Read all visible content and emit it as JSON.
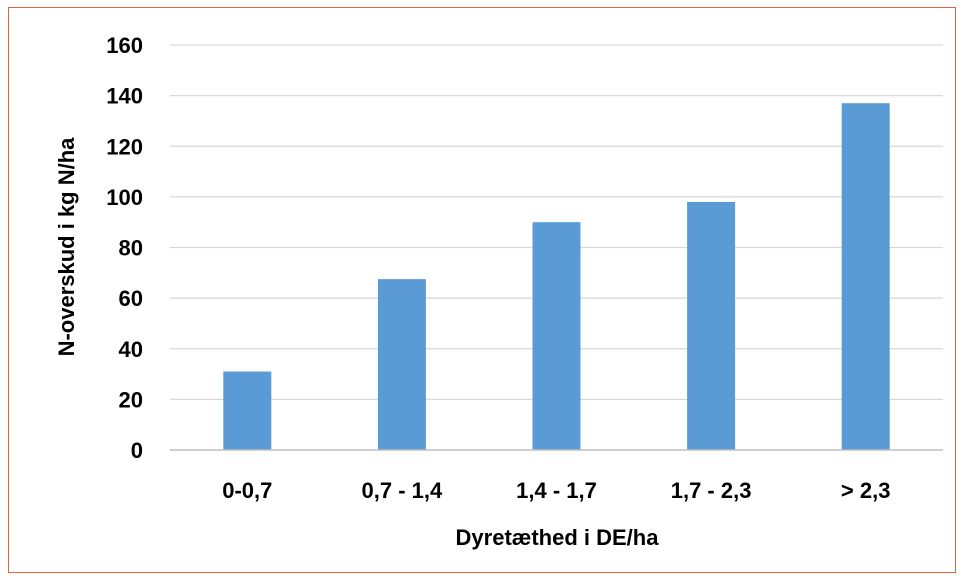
{
  "chart_data": {
    "type": "bar",
    "title": "",
    "xlabel": "Dyretæthed i DE/ha",
    "ylabel": "N-overskud i kg N/ha",
    "categories": [
      "0-0,7",
      "0,7 - 1,4",
      "1,4 - 1,7",
      "1,7 - 2,3",
      "> 2,3"
    ],
    "values": [
      31,
      67.5,
      90,
      98,
      137
    ],
    "ylim": [
      0,
      160
    ],
    "yticks": [
      0,
      20,
      40,
      60,
      80,
      100,
      120,
      140,
      160
    ],
    "grid": true,
    "legend": "none",
    "bar_color": "#5b9bd5",
    "grid_color": "#d9d9d9",
    "border_color": "#e0643c"
  }
}
